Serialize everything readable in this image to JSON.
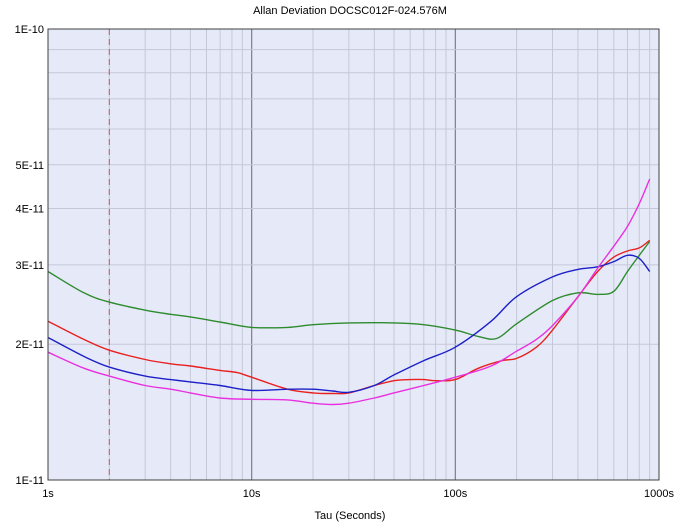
{
  "chart_data": {
    "type": "line",
    "title": "Allan Deviation DOCSC012F-024.576M",
    "xlabel": "Tau (Seconds)",
    "ylabel": "",
    "x_scale": "log",
    "y_scale": "log",
    "xlim": [
      1,
      1000
    ],
    "ylim": [
      1e-11,
      1e-10
    ],
    "x_ticks": [
      {
        "value": 1,
        "label": "1s"
      },
      {
        "value": 10,
        "label": "10s"
      },
      {
        "value": 100,
        "label": "100s"
      },
      {
        "value": 1000,
        "label": "1000s"
      }
    ],
    "y_ticks": [
      {
        "value": 1e-10,
        "label": "1E-10"
      },
      {
        "value": 5e-11,
        "label": "5E-11"
      },
      {
        "value": 4e-11,
        "label": "4E-11"
      },
      {
        "value": 3e-11,
        "label": "3E-11"
      },
      {
        "value": 2e-11,
        "label": "2E-11"
      },
      {
        "value": 1e-11,
        "label": "1E-11"
      }
    ],
    "grid": true,
    "reference_line": {
      "x": 2,
      "color": "#e05050",
      "style": "dashed"
    },
    "colors": {
      "background": "#e6eaf8",
      "grid_major": "#7d8090",
      "grid_minor": "#c4c8d8"
    },
    "series": [
      {
        "color": "#2e8b2e",
        "x": [
          1,
          1.5,
          2,
          3,
          4,
          5,
          7,
          10,
          15,
          20,
          30,
          50,
          70,
          100,
          130,
          160,
          200,
          300,
          400,
          500,
          600,
          700,
          800,
          900
        ],
        "y": [
          2.9e-11,
          2.6e-11,
          2.48e-11,
          2.38e-11,
          2.33e-11,
          2.3e-11,
          2.24e-11,
          2.18e-11,
          2.18e-11,
          2.21e-11,
          2.23e-11,
          2.23e-11,
          2.21e-11,
          2.15e-11,
          2.08e-11,
          2.06e-11,
          2.22e-11,
          2.5e-11,
          2.6e-11,
          2.58e-11,
          2.62e-11,
          2.9e-11,
          3.15e-11,
          3.38e-11
        ]
      },
      {
        "color": "#e82020",
        "x": [
          1,
          1.5,
          2,
          3,
          4,
          5,
          7,
          8.5,
          10,
          15,
          20,
          25,
          30,
          40,
          50,
          60,
          70,
          80,
          100,
          130,
          170,
          200,
          250,
          300,
          400,
          500,
          600,
          700,
          800,
          900
        ],
        "y": [
          2.25e-11,
          2.05e-11,
          1.94e-11,
          1.85e-11,
          1.81e-11,
          1.79e-11,
          1.75e-11,
          1.73e-11,
          1.69e-11,
          1.59e-11,
          1.56e-11,
          1.555e-11,
          1.56e-11,
          1.62e-11,
          1.66e-11,
          1.67e-11,
          1.67e-11,
          1.66e-11,
          1.67e-11,
          1.77e-11,
          1.84e-11,
          1.86e-11,
          1.97e-11,
          2.15e-11,
          2.55e-11,
          2.9e-11,
          3.12e-11,
          3.22e-11,
          3.27e-11,
          3.4e-11
        ]
      },
      {
        "color": "#1c20c8",
        "x": [
          1,
          1.5,
          2,
          3,
          4,
          5,
          7,
          10,
          15,
          20,
          25,
          30,
          40,
          50,
          70,
          100,
          150,
          200,
          300,
          400,
          500,
          600,
          700,
          800,
          900
        ],
        "y": [
          2.07e-11,
          1.88e-11,
          1.78e-11,
          1.7e-11,
          1.67e-11,
          1.65e-11,
          1.62e-11,
          1.58e-11,
          1.59e-11,
          1.59e-11,
          1.575e-11,
          1.565e-11,
          1.62e-11,
          1.71e-11,
          1.84e-11,
          1.97e-11,
          2.25e-11,
          2.55e-11,
          2.82e-11,
          2.93e-11,
          2.97e-11,
          3.05e-11,
          3.15e-11,
          3.1e-11,
          2.9e-11
        ]
      },
      {
        "color": "#e830e0",
        "x": [
          1,
          1.5,
          2,
          3,
          4,
          5,
          7,
          10,
          15,
          20,
          25,
          30,
          40,
          50,
          70,
          100,
          150,
          200,
          250,
          300,
          400,
          500,
          600,
          700,
          800,
          900
        ],
        "y": [
          1.92e-11,
          1.77e-11,
          1.7e-11,
          1.62e-11,
          1.59e-11,
          1.56e-11,
          1.52e-11,
          1.51e-11,
          1.505e-11,
          1.48e-11,
          1.47e-11,
          1.48e-11,
          1.52e-11,
          1.56e-11,
          1.62e-11,
          1.69e-11,
          1.79e-11,
          1.93e-11,
          2.05e-11,
          2.2e-11,
          2.55e-11,
          2.95e-11,
          3.3e-11,
          3.65e-11,
          4.1e-11,
          4.65e-11
        ]
      }
    ]
  }
}
